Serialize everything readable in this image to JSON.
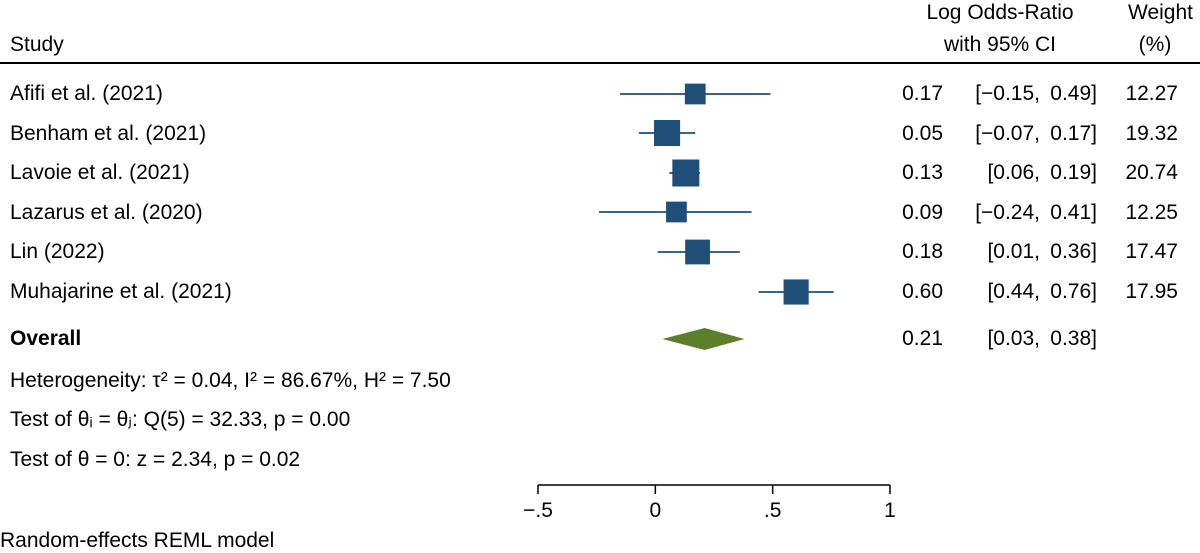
{
  "header": {
    "study": "Study",
    "effect_line1": "Log Odds-Ratio",
    "effect_line2": "with 95% CI",
    "weight_line1": "Weight",
    "weight_line2": "(%)"
  },
  "rows": [
    {
      "study": "Afifi et al. (2021)",
      "est": "0.17",
      "ci_lo": "[−0.15,",
      "ci_hi": "0.49]",
      "weight": "12.27"
    },
    {
      "study": "Benham et al. (2021)",
      "est": "0.05",
      "ci_lo": "[−0.07,",
      "ci_hi": "0.17]",
      "weight": "19.32"
    },
    {
      "study": "Lavoie et al. (2021)",
      "est": "0.13",
      "ci_lo": "[0.06,",
      "ci_hi": "0.19]",
      "weight": "20.74"
    },
    {
      "study": "Lazarus et al. (2020)",
      "est": "0.09",
      "ci_lo": "[−0.24,",
      "ci_hi": "0.41]",
      "weight": "12.25"
    },
    {
      "study": "Lin (2022)",
      "est": "0.18",
      "ci_lo": "[0.01,",
      "ci_hi": "0.36]",
      "weight": "17.47"
    },
    {
      "study": "Muhajarine et al. (2021)",
      "est": "0.60",
      "ci_lo": "[0.44,",
      "ci_hi": "0.76]",
      "weight": "17.95"
    }
  ],
  "overall": {
    "label": "Overall",
    "est": "0.21",
    "ci_lo": "[0.03,",
    "ci_hi": "0.38]"
  },
  "stats": {
    "heterogeneity": "Heterogeneity: τ² = 0.04, I² = 86.67%, H² = 7.50",
    "test_equal": "Test of θᵢ = θⱼ: Q(5) = 32.33, p = 0.00",
    "test_zero": "Test of θ = 0: z = 2.34, p = 0.02"
  },
  "footnote": "Random-effects REML model",
  "colors": {
    "study_marker": "#1f4e79",
    "ci_line": "#1f4e79",
    "overall_diamond": "#5b7f2b"
  },
  "chart_data": {
    "type": "forest",
    "xlim": [
      -0.5,
      1
    ],
    "xticks": [
      -0.5,
      0,
      0.5,
      1
    ],
    "xtick_labels": [
      "−.5",
      "0",
      ".5",
      "1"
    ],
    "studies": [
      {
        "name": "Afifi et al. (2021)",
        "est": 0.17,
        "lo": -0.15,
        "hi": 0.49,
        "weight": 12.27
      },
      {
        "name": "Benham et al. (2021)",
        "est": 0.05,
        "lo": -0.07,
        "hi": 0.17,
        "weight": 19.32
      },
      {
        "name": "Lavoie et al. (2021)",
        "est": 0.13,
        "lo": 0.06,
        "hi": 0.19,
        "weight": 20.74
      },
      {
        "name": "Lazarus et al. (2020)",
        "est": 0.09,
        "lo": -0.24,
        "hi": 0.41,
        "weight": 12.25
      },
      {
        "name": "Lin (2022)",
        "est": 0.18,
        "lo": 0.01,
        "hi": 0.36,
        "weight": 17.47
      },
      {
        "name": "Muhajarine et al. (2021)",
        "est": 0.6,
        "lo": 0.44,
        "hi": 0.76,
        "weight": 17.95
      }
    ],
    "overall": {
      "est": 0.21,
      "lo": 0.03,
      "hi": 0.38
    }
  }
}
